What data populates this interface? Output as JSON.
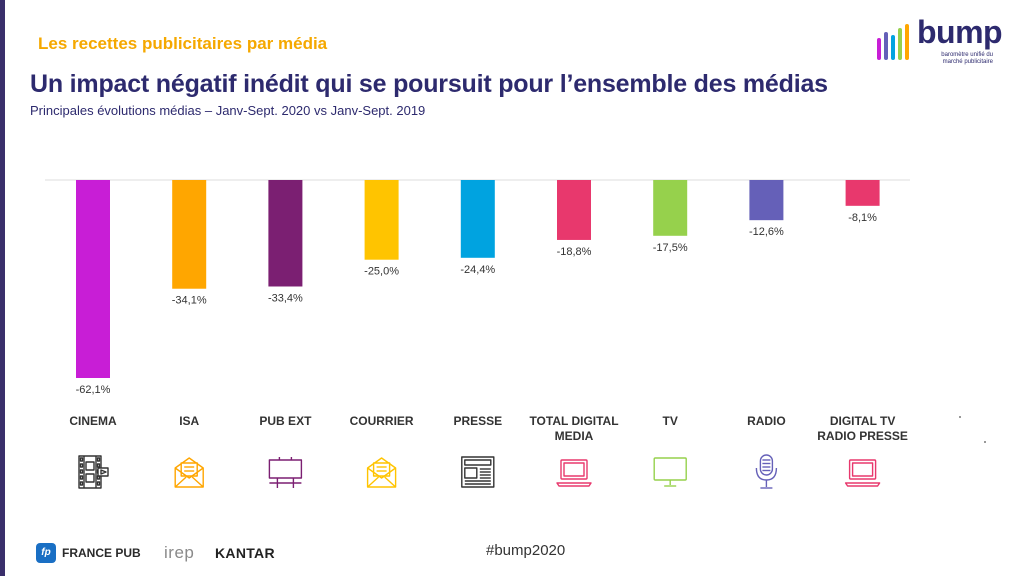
{
  "header": {
    "section_title": "Les recettes publicitaires par média",
    "title": "Un impact négatif inédit qui se poursuit pour l’ensemble des médias",
    "subtitle": "Principales évolutions médias – Janv-Sept. 2020 vs Janv-Sept. 2019"
  },
  "logo": {
    "word": "bump",
    "tagline": "baromètre unifié du marché publicitaire"
  },
  "chart_data": {
    "type": "bar",
    "title": "",
    "xlabel": "",
    "ylabel": "",
    "ylim": [
      -65,
      0
    ],
    "grid": false,
    "categories": [
      "CINEMA",
      "ISA",
      "PUB EXT",
      "COURRIER",
      "PRESSE",
      "TOTAL DIGITAL MEDIA",
      "TV",
      "RADIO",
      "DIGITAL TV RADIO PRESSE"
    ],
    "category_lines": [
      [
        "CINEMA"
      ],
      [
        "ISA"
      ],
      [
        "PUB EXT"
      ],
      [
        "COURRIER"
      ],
      [
        "PRESSE"
      ],
      [
        "TOTAL DIGITAL",
        "MEDIA"
      ],
      [
        "TV"
      ],
      [
        "RADIO"
      ],
      [
        "DIGITAL TV",
        "RADIO PRESSE"
      ]
    ],
    "values": [
      -62.1,
      -34.1,
      -33.4,
      -25.0,
      -24.4,
      -18.8,
      -17.5,
      -12.6,
      -8.1
    ],
    "data_labels": [
      "-62,1%",
      "-34,1%",
      "-33,4%",
      "-25,0%",
      "-24,4%",
      "-18,8%",
      "-17,5%",
      "-12,6%",
      "-8,1%"
    ],
    "colors": [
      "#c81ed6",
      "#ffa600",
      "#7b1f72",
      "#ffc400",
      "#00a3e0",
      "#e8386d",
      "#96d14c",
      "#6560b8",
      "#e8386d"
    ],
    "icons": [
      "film-strip-icon",
      "mail-envelope-icon",
      "billboard-icon",
      "mail-envelope-icon",
      "newspaper-icon",
      "laptop-icon",
      "monitor-icon",
      "microphone-icon",
      "laptop-icon"
    ]
  },
  "footer": {
    "france_pub_mark": "fp",
    "france_pub": "FRANCE PUB",
    "irep": "irep",
    "kantar": "KANTAR",
    "hashtag": "#bump2020"
  }
}
